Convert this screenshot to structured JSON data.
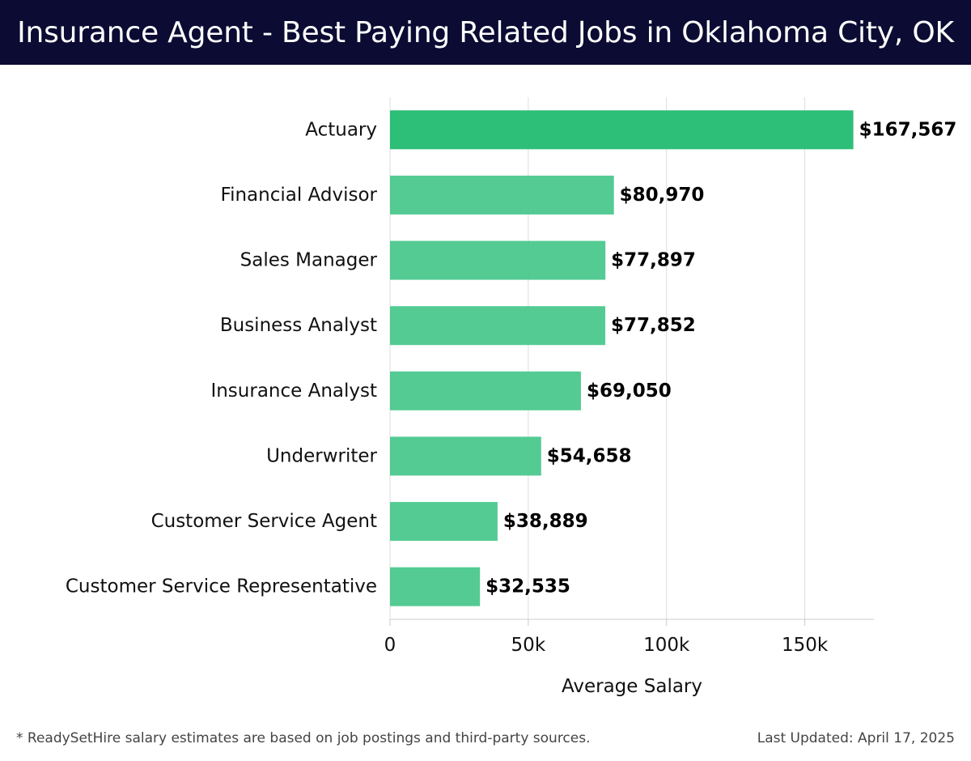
{
  "header": {
    "title": "Insurance Agent - Best Paying Related Jobs in Oklahoma City, OK"
  },
  "chart_data": {
    "type": "bar",
    "orientation": "horizontal",
    "categories": [
      "Actuary",
      "Financial Advisor",
      "Sales Manager",
      "Business Analyst",
      "Insurance Analyst",
      "Underwriter",
      "Customer Service Agent",
      "Customer Service Representative"
    ],
    "values": [
      167567,
      80970,
      77897,
      77852,
      69050,
      54658,
      38889,
      32535
    ],
    "value_labels": [
      "$167,567",
      "$80,970",
      "$77,897",
      "$77,852",
      "$69,050",
      "$54,658",
      "$38,889",
      "$32,535"
    ],
    "xlabel": "Average Salary",
    "ylabel": "",
    "xlim": [
      0,
      175000
    ],
    "ticks": [
      0,
      50000,
      100000,
      150000
    ],
    "tick_labels": [
      "0",
      "50k",
      "100k",
      "150k"
    ],
    "grid": true,
    "colors": {
      "top_bar": "#22bb70",
      "bar": "#44c78a",
      "grid": "#dddddd",
      "axis": "#cccccc",
      "header_bg": "#0b0b33"
    }
  },
  "footer": {
    "note": "* ReadySetHire salary estimates are based on job postings and third-party sources.",
    "updated": "Last Updated: April 17, 2025"
  }
}
